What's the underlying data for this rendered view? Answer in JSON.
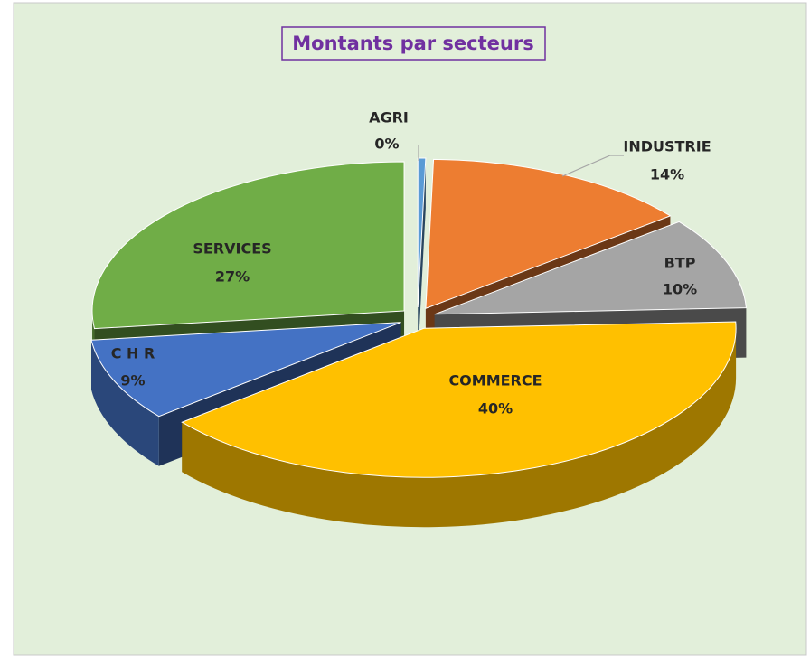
{
  "chart_data": {
    "type": "pie3d",
    "title": "Montants par secteurs",
    "categories": [
      "AGRI",
      "INDUSTRIE",
      "BTP",
      "COMMERCE",
      "C H R",
      "SERVICES"
    ],
    "values": [
      0.4,
      14,
      10,
      40,
      9,
      27
    ],
    "value_labels": [
      "0%",
      "14%",
      "10%",
      "40%",
      "9%",
      "27%"
    ],
    "colors": [
      "#5b9bd5",
      "#ed7d31",
      "#a5a5a5",
      "#ffc000",
      "#4472c4",
      "#70ad47"
    ]
  }
}
